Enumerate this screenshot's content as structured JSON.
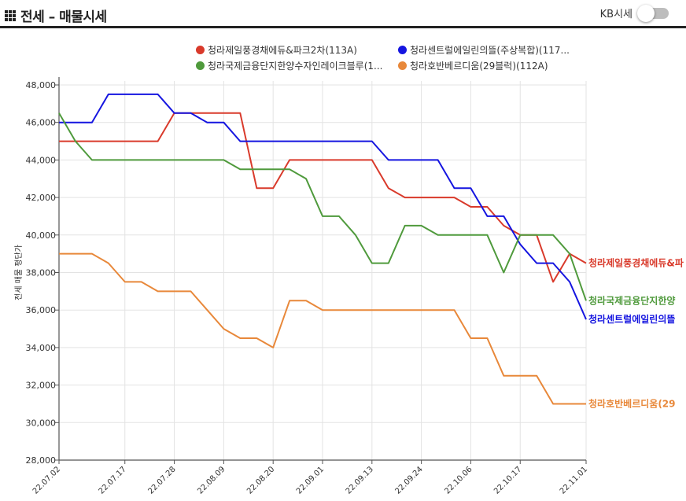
{
  "header": {
    "title": "전세 – 매물시세",
    "icon": "grid-icon"
  },
  "kb_toggle": {
    "label": "KB시세",
    "on": false
  },
  "chart_data": {
    "type": "line",
    "title": "",
    "ylabel": "전세 매물 평단가",
    "ylim": [
      28000,
      48000
    ],
    "yticks": [
      28000,
      30000,
      32000,
      34000,
      36000,
      38000,
      40000,
      42000,
      44000,
      46000,
      48000
    ],
    "ytick_labels": [
      "28,000",
      "30,000",
      "32,000",
      "34,000",
      "36,000",
      "38,000",
      "40,000",
      "42,000",
      "44,000",
      "46,000",
      "48,000"
    ],
    "x": [
      "22.07.02",
      "22.07.06",
      "22.07.10",
      "22.07.14",
      "22.07.17",
      "22.07.21",
      "22.07.25",
      "22.07.28",
      "22.08.01",
      "22.08.05",
      "22.08.09",
      "22.08.12",
      "22.08.16",
      "22.08.20",
      "22.08.23",
      "22.08.27",
      "22.09.01",
      "22.09.05",
      "22.09.09",
      "22.09.13",
      "22.09.17",
      "22.09.21",
      "22.09.24",
      "22.09.28",
      "22.10.02",
      "22.10.06",
      "22.10.10",
      "22.10.13",
      "22.10.17",
      "22.10.21",
      "22.10.25",
      "22.10.28",
      "22.11.01"
    ],
    "xticks": [
      "22.07.02",
      "22.07.17",
      "22.07.28",
      "22.08.09",
      "22.08.20",
      "22.09.01",
      "22.09.13",
      "22.09.24",
      "22.10.06",
      "22.10.17",
      "22.11.01"
    ],
    "series": [
      {
        "name": "청라제일풍경채에듀&파크2차(113A)",
        "end_label": "청라제일풍경채에듀&파",
        "color": "#d93a2b",
        "values": [
          45000,
          45000,
          45000,
          45000,
          45000,
          45000,
          45000,
          46500,
          46500,
          46500,
          46500,
          46500,
          42500,
          42500,
          44000,
          44000,
          44000,
          44000,
          44000,
          44000,
          42500,
          42000,
          42000,
          42000,
          42000,
          41500,
          41500,
          40500,
          40000,
          40000,
          37500,
          39000,
          38500
        ]
      },
      {
        "name": "청라센트럴에일린의뜰(주상복합)(117...",
        "end_label": "청라센트럴에일린의뜰",
        "color": "#1515e0",
        "values": [
          46000,
          46000,
          46000,
          47500,
          47500,
          47500,
          47500,
          46500,
          46500,
          46000,
          46000,
          45000,
          45000,
          45000,
          45000,
          45000,
          45000,
          45000,
          45000,
          45000,
          44000,
          44000,
          44000,
          44000,
          42500,
          42500,
          41000,
          41000,
          39500,
          38500,
          38500,
          37500,
          35500
        ]
      },
      {
        "name": "청라국제금융단지한양수자인레이크블루(1...",
        "end_label": "청라국제금융단지한양",
        "color": "#4f9a3c",
        "values": [
          46500,
          45000,
          44000,
          44000,
          44000,
          44000,
          44000,
          44000,
          44000,
          44000,
          44000,
          43500,
          43500,
          43500,
          43500,
          43000,
          41000,
          41000,
          40000,
          38500,
          38500,
          40500,
          40500,
          40000,
          40000,
          40000,
          40000,
          38000,
          40000,
          40000,
          40000,
          39000,
          36500
        ]
      },
      {
        "name": "청라호반베르디움(29블럭)(112A)",
        "end_label": "청라호반베르디움(29",
        "color": "#e8883a",
        "values": [
          39000,
          39000,
          39000,
          38500,
          37500,
          37500,
          37000,
          37000,
          37000,
          36000,
          35000,
          34500,
          34500,
          34000,
          36500,
          36500,
          36000,
          36000,
          36000,
          36000,
          36000,
          36000,
          36000,
          36000,
          36000,
          34500,
          34500,
          32500,
          32500,
          32500,
          31000,
          31000,
          31000
        ]
      }
    ],
    "legend_position": "top",
    "grid": true
  }
}
